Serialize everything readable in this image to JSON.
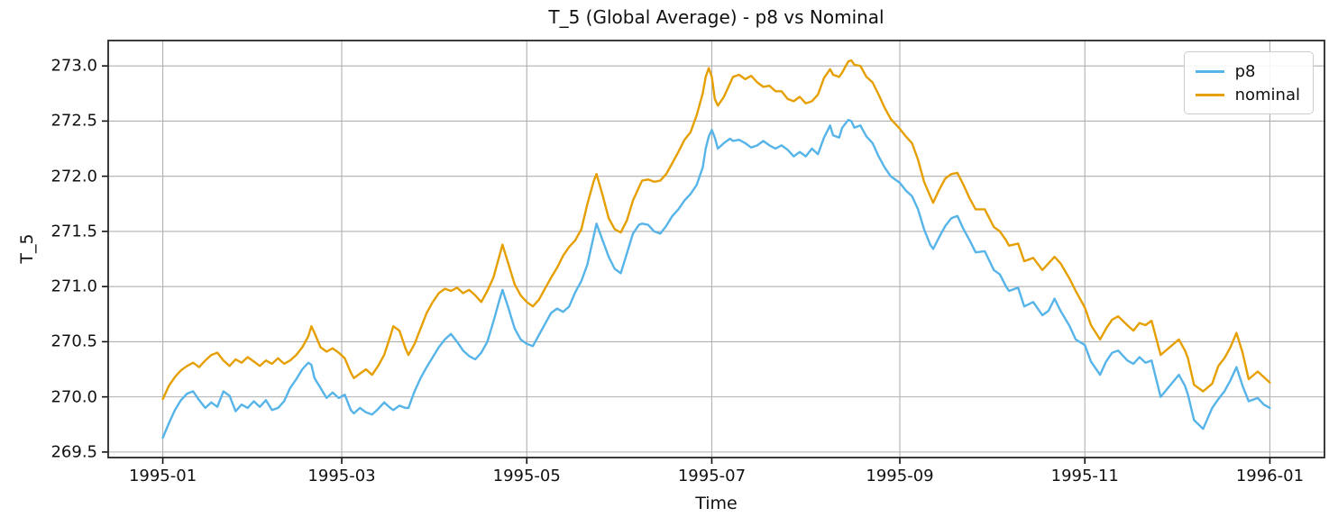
{
  "chart_data": {
    "type": "line",
    "title": "T_5 (Global Average) - p8 vs Nominal",
    "xlabel": "Time",
    "ylabel": "T_5",
    "grid": true,
    "legend_position": "upper right",
    "background_color": "#ffffff",
    "grid_color": "#b0b0b0",
    "spine_color": "#262626",
    "text_color": "#111111",
    "ylim": [
      269.45,
      273.23
    ],
    "xlim_days": [
      -18,
      383
    ],
    "yticks": [
      269.5,
      270.0,
      270.5,
      271.0,
      271.5,
      272.0,
      272.5,
      273.0
    ],
    "xticks": {
      "days": [
        0,
        59,
        120,
        181,
        243,
        304,
        365
      ],
      "labels": [
        "1995-01",
        "1995-03",
        "1995-05",
        "1995-07",
        "1995-09",
        "1995-11",
        "1996-01"
      ]
    },
    "x_unit": "days since 1995-01-01",
    "days": [
      0,
      2,
      4,
      6,
      8,
      10,
      12,
      14,
      16,
      18,
      20,
      22,
      24,
      26,
      28,
      30,
      32,
      34,
      36,
      38,
      40,
      42,
      44,
      46,
      48,
      49,
      50,
      52,
      54,
      56,
      58,
      60,
      62,
      63,
      65,
      67,
      69,
      71,
      73,
      75,
      76,
      78,
      80,
      81,
      83,
      85,
      87,
      89,
      91,
      93,
      95,
      97,
      99,
      101,
      103,
      105,
      107,
      109,
      111,
      112,
      114,
      116,
      118,
      120,
      122,
      124,
      126,
      128,
      130,
      132,
      134,
      136,
      138,
      140,
      142,
      143,
      145,
      147,
      149,
      151,
      153,
      155,
      157,
      158,
      160,
      162,
      164,
      166,
      168,
      170,
      172,
      174,
      176,
      178,
      179,
      180,
      181,
      182,
      183,
      185,
      187,
      188,
      190,
      192,
      194,
      196,
      198,
      200,
      202,
      204,
      206,
      208,
      210,
      212,
      214,
      216,
      218,
      220,
      221,
      223,
      224,
      226,
      227,
      228,
      230,
      232,
      234,
      236,
      238,
      240,
      242,
      243,
      245,
      247,
      249,
      251,
      253,
      254,
      256,
      258,
      260,
      262,
      264,
      266,
      268,
      271,
      274,
      276,
      278,
      279,
      282,
      284,
      287,
      290,
      292,
      294,
      296,
      299,
      301,
      304,
      306,
      309,
      311,
      313,
      315,
      318,
      320,
      322,
      324,
      326,
      329,
      332,
      335,
      337,
      338,
      340,
      343,
      346,
      348,
      350,
      352,
      354,
      356,
      358,
      361,
      363,
      365
    ],
    "series": [
      {
        "name": "p8",
        "color": "#56b4e9",
        "values": [
          269.63,
          269.76,
          269.88,
          269.97,
          270.03,
          270.05,
          269.97,
          269.9,
          269.95,
          269.91,
          270.05,
          270.01,
          269.87,
          269.93,
          269.9,
          269.96,
          269.91,
          269.97,
          269.88,
          269.9,
          269.96,
          270.08,
          270.16,
          270.25,
          270.31,
          270.29,
          270.17,
          270.08,
          269.99,
          270.04,
          269.99,
          270.02,
          269.88,
          269.85,
          269.9,
          269.86,
          269.84,
          269.89,
          269.95,
          269.9,
          269.88,
          269.92,
          269.9,
          269.9,
          270.05,
          270.17,
          270.27,
          270.36,
          270.45,
          270.52,
          270.57,
          270.5,
          270.42,
          270.37,
          270.34,
          270.4,
          270.5,
          270.68,
          270.88,
          270.97,
          270.8,
          270.62,
          270.52,
          270.48,
          270.46,
          270.56,
          270.66,
          270.76,
          270.8,
          270.77,
          270.82,
          270.95,
          271.05,
          271.2,
          271.45,
          271.57,
          271.42,
          271.27,
          271.16,
          271.12,
          271.3,
          271.48,
          271.56,
          271.57,
          271.56,
          271.5,
          271.48,
          271.55,
          271.64,
          271.7,
          271.78,
          271.84,
          271.92,
          272.08,
          272.25,
          272.36,
          272.42,
          272.35,
          272.25,
          272.3,
          272.34,
          272.32,
          272.33,
          272.3,
          272.26,
          272.28,
          272.32,
          272.28,
          272.25,
          272.28,
          272.24,
          272.18,
          272.22,
          272.18,
          272.25,
          272.2,
          272.35,
          272.46,
          272.37,
          272.35,
          272.44,
          272.51,
          272.5,
          272.44,
          272.46,
          272.36,
          272.3,
          272.18,
          272.08,
          272.0,
          271.96,
          271.94,
          271.87,
          271.82,
          271.7,
          271.52,
          271.38,
          271.34,
          271.45,
          271.55,
          271.62,
          271.64,
          271.52,
          271.42,
          271.31,
          271.32,
          271.15,
          271.11,
          271.0,
          270.96,
          270.99,
          270.82,
          270.86,
          270.74,
          270.78,
          270.89,
          270.78,
          270.64,
          270.52,
          270.47,
          270.32,
          270.2,
          270.32,
          270.4,
          270.42,
          270.33,
          270.3,
          270.36,
          270.31,
          270.33,
          270.0,
          270.1,
          270.2,
          270.1,
          270.02,
          269.79,
          269.71,
          269.9,
          269.98,
          270.05,
          270.15,
          270.27,
          270.1,
          269.96,
          269.99,
          269.93,
          269.9
        ]
      },
      {
        "name": "nominal",
        "color": "#e69f00",
        "values": [
          269.98,
          270.1,
          270.18,
          270.24,
          270.28,
          270.31,
          270.27,
          270.33,
          270.38,
          270.4,
          270.33,
          270.28,
          270.34,
          270.31,
          270.36,
          270.32,
          270.28,
          270.33,
          270.3,
          270.35,
          270.3,
          270.33,
          270.38,
          270.45,
          270.55,
          270.64,
          270.58,
          270.45,
          270.41,
          270.44,
          270.4,
          270.35,
          270.22,
          270.17,
          270.21,
          270.25,
          270.2,
          270.28,
          270.38,
          270.55,
          270.64,
          270.6,
          270.44,
          270.38,
          270.48,
          270.62,
          270.76,
          270.86,
          270.94,
          270.98,
          270.96,
          270.99,
          270.94,
          270.97,
          270.92,
          270.86,
          270.96,
          271.08,
          271.28,
          271.38,
          271.2,
          271.02,
          270.92,
          270.86,
          270.82,
          270.88,
          270.98,
          271.08,
          271.17,
          271.28,
          271.36,
          271.42,
          271.52,
          271.75,
          271.95,
          272.02,
          271.83,
          271.62,
          271.52,
          271.49,
          271.6,
          271.78,
          271.9,
          271.96,
          271.97,
          271.95,
          271.96,
          272.02,
          272.12,
          272.22,
          272.33,
          272.4,
          272.55,
          272.75,
          272.9,
          272.98,
          272.9,
          272.7,
          272.64,
          272.72,
          272.84,
          272.9,
          272.92,
          272.88,
          272.91,
          272.85,
          272.81,
          272.82,
          272.77,
          272.77,
          272.7,
          272.68,
          272.72,
          272.66,
          272.68,
          272.74,
          272.89,
          272.97,
          272.92,
          272.9,
          272.94,
          273.04,
          273.05,
          273.01,
          273.0,
          272.9,
          272.85,
          272.74,
          272.62,
          272.52,
          272.46,
          272.43,
          272.36,
          272.3,
          272.15,
          271.95,
          271.82,
          271.76,
          271.88,
          271.98,
          272.02,
          272.03,
          271.92,
          271.8,
          271.7,
          271.7,
          271.54,
          271.5,
          271.42,
          271.37,
          271.39,
          271.23,
          271.26,
          271.15,
          271.21,
          271.27,
          271.21,
          271.07,
          270.96,
          270.81,
          270.65,
          270.52,
          270.62,
          270.7,
          270.73,
          270.65,
          270.6,
          270.67,
          270.65,
          270.69,
          270.38,
          270.45,
          270.52,
          270.42,
          270.35,
          270.11,
          270.05,
          270.12,
          270.28,
          270.35,
          270.45,
          270.58,
          270.4,
          270.16,
          270.23,
          270.18,
          270.13
        ]
      }
    ]
  }
}
